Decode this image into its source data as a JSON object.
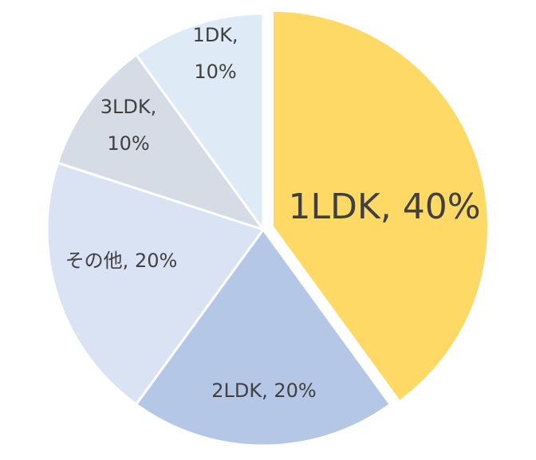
{
  "chart_data": {
    "type": "pie",
    "title": "",
    "legend": "none",
    "slices": [
      {
        "category": "1LDK",
        "value": 40,
        "percent_label": "40%",
        "color": "#FFD966",
        "exploded": true
      },
      {
        "category": "2LDK",
        "value": 20,
        "percent_label": "20%",
        "color": "#B4C7E7"
      },
      {
        "category": "その他",
        "value": 20,
        "percent_label": "20%",
        "color": "#DAE3F3"
      },
      {
        "category": "3LDK",
        "value": 10,
        "percent_label": "10%",
        "color": "#D6DCE5"
      },
      {
        "category": "1DK",
        "value": 10,
        "percent_label": "10%",
        "color": "#DEEBF7"
      }
    ],
    "data_labels": [
      {
        "lines": [
          "1LDK, 40%"
        ]
      },
      {
        "lines": [
          "2LDK, 20%"
        ]
      },
      {
        "lines": [
          "その他, 20%"
        ]
      },
      {
        "lines": [
          "3LDK,",
          "10%"
        ]
      },
      {
        "lines": [
          "1DK,",
          "10%"
        ]
      }
    ]
  }
}
